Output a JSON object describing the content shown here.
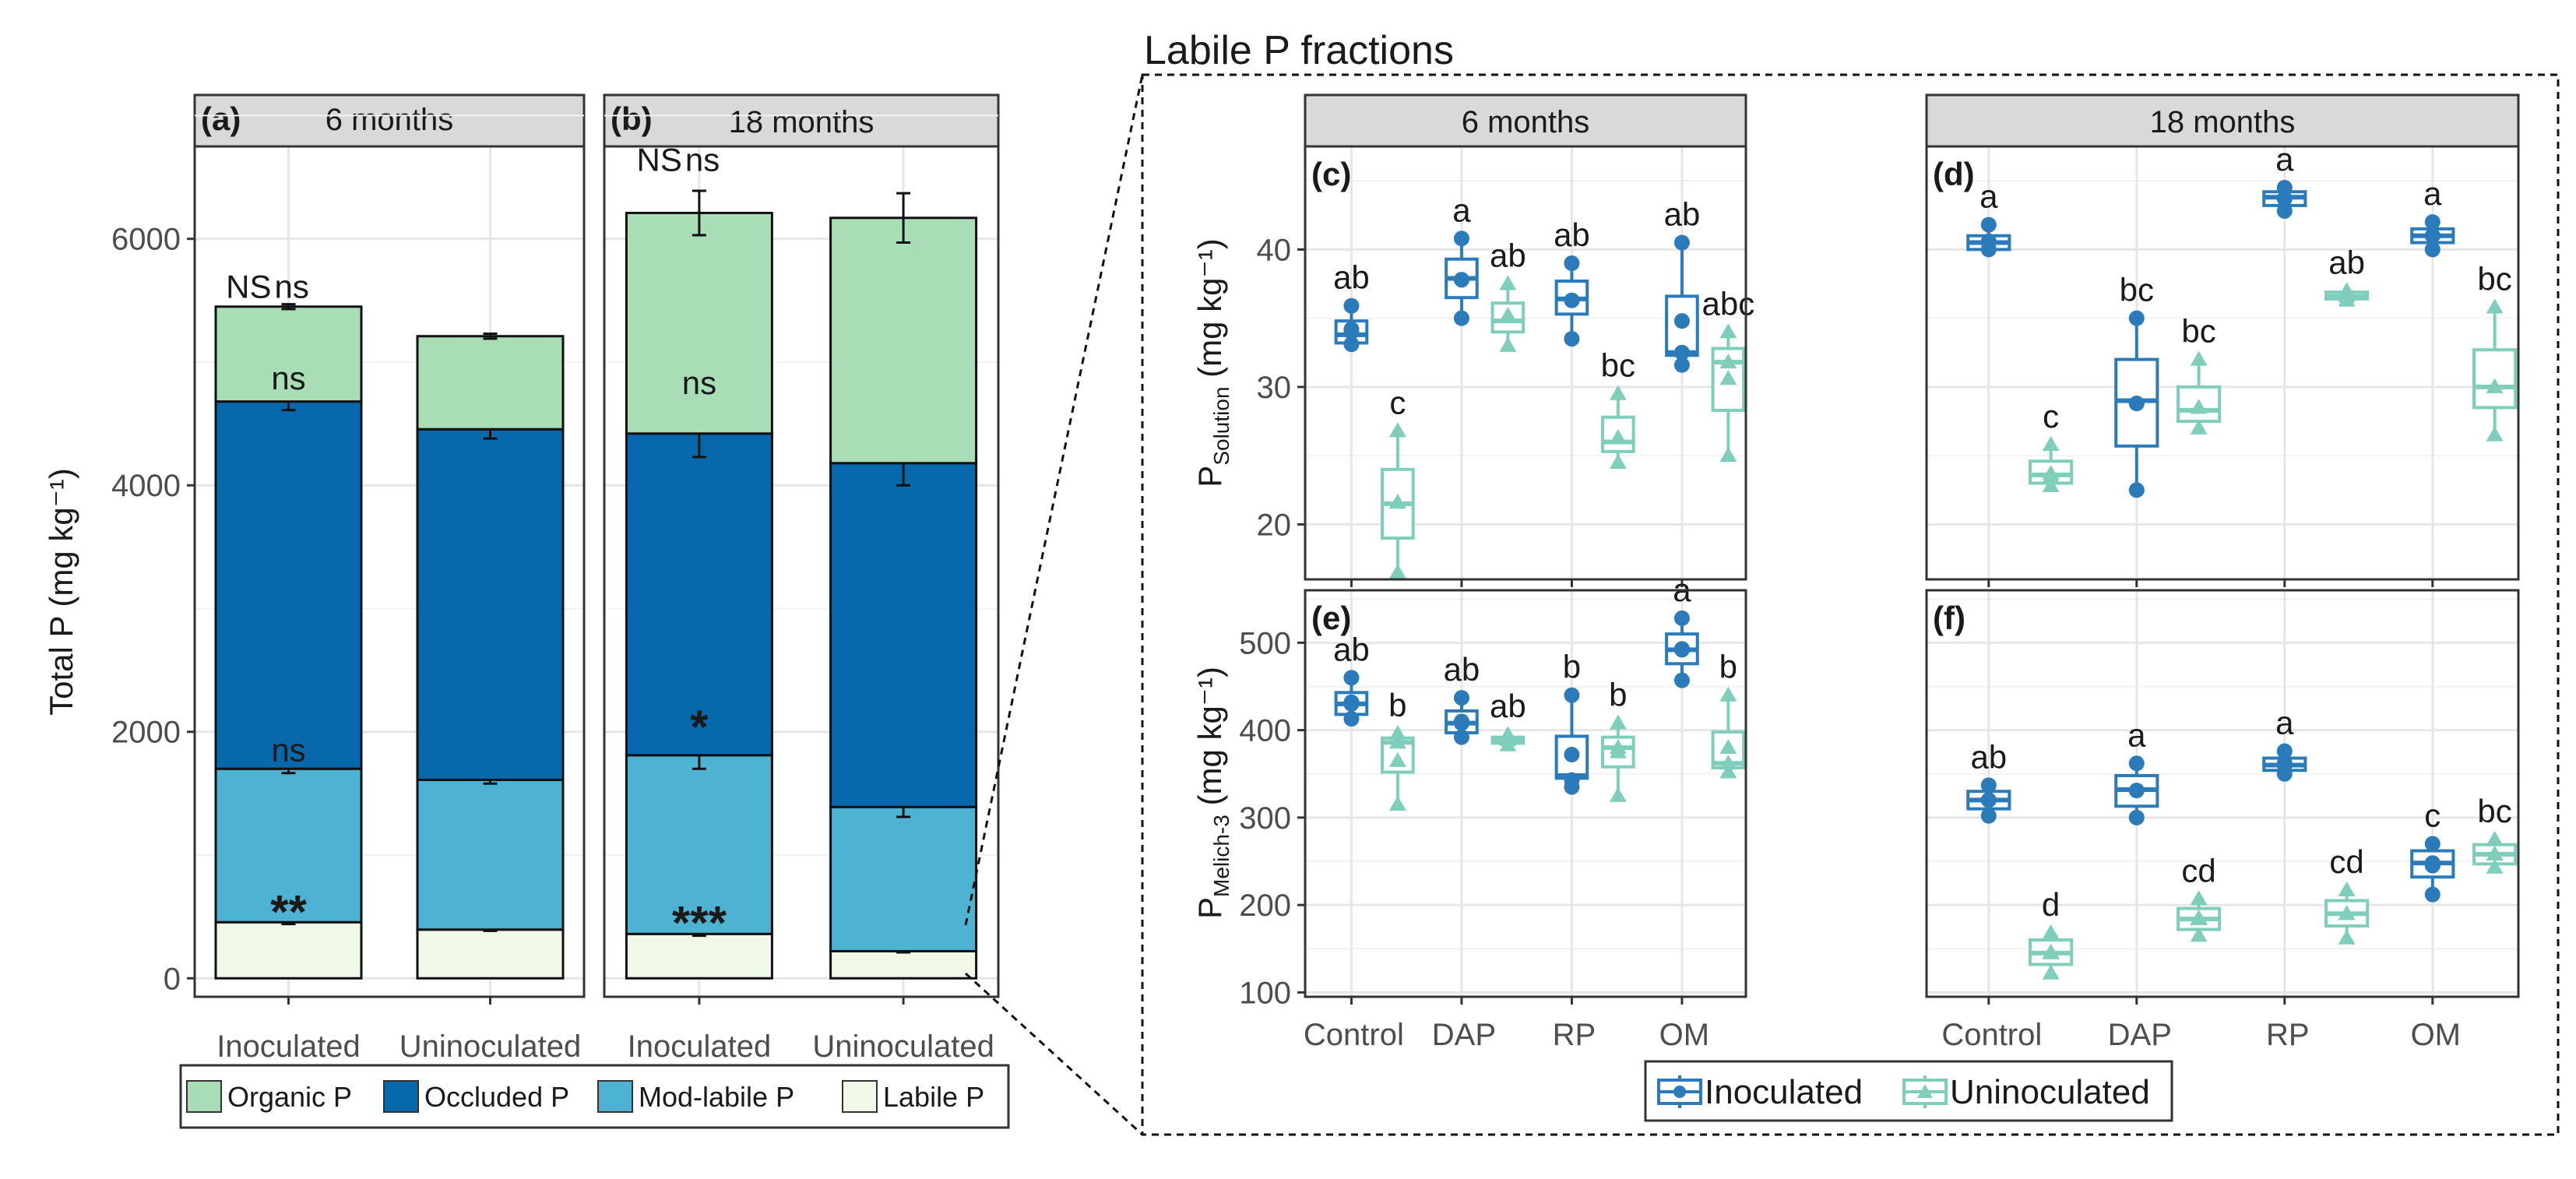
{
  "chart_data": [
    {
      "id": "a",
      "type": "bar",
      "stacked": true,
      "panel_label": "(a)",
      "strip": "6 months",
      "ylabel": "Total P (mg kg⁻¹)",
      "ylim": [
        -150,
        6750
      ],
      "yticks": [
        0,
        2000,
        4000,
        6000
      ],
      "categories": [
        "Inoculated",
        "Uninoculated"
      ],
      "series": [
        {
          "name": "Labile P",
          "values": [
            455,
            395
          ],
          "errors": [
            15,
            10
          ]
        },
        {
          "name": "Mod-labile P",
          "values": [
            1245,
            1215
          ],
          "errors": [
            35,
            30
          ]
        },
        {
          "name": "Occluded P",
          "values": [
            2980,
            2845
          ],
          "errors": [
            70,
            75
          ]
        },
        {
          "name": "Organic P",
          "values": [
            770,
            755
          ],
          "errors": [
            20,
            20
          ]
        }
      ],
      "sig_labels": [
        {
          "text": "NS",
          "value": 5520,
          "group": 0,
          "side": "left"
        },
        {
          "text": "ns",
          "value": 5520,
          "group": 0,
          "side": "right"
        },
        {
          "text": "ns",
          "value": 4780,
          "group": 0,
          "side": "center"
        },
        {
          "text": "ns",
          "value": 1760,
          "group": 0,
          "side": "center"
        },
        {
          "text": "**",
          "value": 460,
          "group": 0,
          "side": "star"
        }
      ]
    },
    {
      "id": "b",
      "type": "bar",
      "stacked": true,
      "panel_label": "(b)",
      "strip": "18 months",
      "ylim": [
        -150,
        6750
      ],
      "categories": [
        "Inoculated",
        "Uninoculated"
      ],
      "series": [
        {
          "name": "Labile P",
          "values": [
            360,
            220
          ],
          "errors": [
            15,
            10
          ]
        },
        {
          "name": "Mod-labile P",
          "values": [
            1450,
            1170
          ],
          "errors": [
            110,
            80
          ]
        },
        {
          "name": "Occluded P",
          "values": [
            2610,
            2790
          ],
          "errors": [
            190,
            180
          ]
        },
        {
          "name": "Organic P",
          "values": [
            1790,
            1990
          ],
          "errors": [
            180,
            200
          ]
        }
      ],
      "sig_labels": [
        {
          "text": "NS",
          "value": 6550,
          "group": 0,
          "side": "left"
        },
        {
          "text": "ns",
          "value": 6550,
          "group": 0,
          "side": "right"
        },
        {
          "text": "ns",
          "value": 4740,
          "group": 0,
          "side": "center"
        },
        {
          "text": "*",
          "value": 1960,
          "group": 0,
          "side": "star"
        },
        {
          "text": "***",
          "value": 370,
          "group": 0,
          "side": "star"
        }
      ]
    },
    {
      "id": "c",
      "type": "box",
      "panel_label": "(c)",
      "strip": "6 months",
      "ylabel": "P",
      "ylabel_sub": "Solution",
      "ylabel_units": " (mg kg⁻¹)",
      "ylim": [
        16,
        47.5
      ],
      "yticks": [
        20,
        30,
        40
      ],
      "categories": [
        "Control",
        "DAP",
        "RP",
        "OM"
      ],
      "series": [
        {
          "name": "Inoculated",
          "boxes": [
            {
              "q1": 33.2,
              "med": 33.8,
              "q3": 34.8,
              "min": 33.0,
              "max": 35.9,
              "mean": 34.2,
              "pts": [
                33.1,
                34.0,
                35.9
              ],
              "label": "ab"
            },
            {
              "q1": 36.5,
              "med": 37.9,
              "q3": 39.3,
              "min": 35.0,
              "max": 40.8,
              "mean": 37.8,
              "pts": [
                35.0,
                37.8,
                40.8
              ],
              "label": "a"
            },
            {
              "q1": 35.3,
              "med": 36.4,
              "q3": 37.7,
              "min": 33.5,
              "max": 39.0,
              "mean": 36.3,
              "pts": [
                33.5,
                36.3,
                39.0
              ],
              "label": "ab"
            },
            {
              "q1": 32.3,
              "med": 32.5,
              "q3": 36.6,
              "min": 31.6,
              "max": 40.5,
              "mean": 34.8,
              "pts": [
                31.6,
                32.5,
                40.5
              ],
              "label": "ab"
            }
          ]
        },
        {
          "name": "Uninoculated",
          "boxes": [
            {
              "q1": 19.0,
              "med": 21.5,
              "q3": 24.0,
              "min": 16.5,
              "max": 26.8,
              "mean": 21.6,
              "pts": [
                16.5,
                21.6,
                26.8
              ],
              "label": "c"
            },
            {
              "q1": 34.0,
              "med": 34.8,
              "q3": 36.1,
              "min": 33.0,
              "max": 37.5,
              "mean": 35.2,
              "pts": [
                33.0,
                35.2,
                37.5
              ],
              "label": "ab"
            },
            {
              "q1": 25.3,
              "med": 26.0,
              "q3": 27.8,
              "min": 24.5,
              "max": 29.5,
              "mean": 26.3,
              "pts": [
                24.5,
                26.3,
                29.5
              ],
              "label": "bc"
            },
            {
              "q1": 28.3,
              "med": 31.8,
              "q3": 32.8,
              "min": 25.0,
              "max": 34.0,
              "mean": 30.6,
              "pts": [
                25.0,
                31.8,
                34.0
              ],
              "label": "abc"
            }
          ]
        }
      ]
    },
    {
      "id": "d",
      "type": "box",
      "panel_label": "(d)",
      "strip": "18 months",
      "ylim": [
        16,
        47.5
      ],
      "categories": [
        "Control",
        "DAP",
        "RP",
        "OM"
      ],
      "series": [
        {
          "name": "Inoculated",
          "boxes": [
            {
              "q1": 40.0,
              "med": 40.5,
              "q3": 41.0,
              "min": 40.0,
              "max": 41.8,
              "mean": 40.6,
              "pts": [
                40.0,
                40.5,
                41.8
              ],
              "label": "a"
            },
            {
              "q1": 25.7,
              "med": 29.0,
              "q3": 32.0,
              "min": 22.5,
              "max": 35.0,
              "mean": 28.8,
              "pts": [
                22.5,
                28.8,
                35.0
              ],
              "label": "bc"
            },
            {
              "q1": 43.2,
              "med": 43.8,
              "q3": 44.2,
              "min": 42.8,
              "max": 44.5,
              "mean": 43.7,
              "pts": [
                42.8,
                43.7,
                44.5
              ],
              "label": "a"
            },
            {
              "q1": 40.5,
              "med": 41.0,
              "q3": 41.5,
              "min": 40.0,
              "max": 42.0,
              "mean": 41.0,
              "pts": [
                40.0,
                41.0,
                42.0
              ],
              "label": "a"
            }
          ]
        },
        {
          "name": "Uninoculated",
          "boxes": [
            {
              "q1": 23.0,
              "med": 23.6,
              "q3": 24.6,
              "min": 22.8,
              "max": 25.8,
              "mean": 23.7,
              "pts": [
                22.8,
                23.5,
                25.8
              ],
              "label": "c"
            },
            {
              "q1": 27.5,
              "med": 28.3,
              "q3": 30.0,
              "min": 27.0,
              "max": 32.0,
              "mean": 28.5,
              "pts": [
                27.0,
                28.5,
                32.0
              ],
              "label": "bc"
            },
            {
              "q1": 36.4,
              "med": 36.6,
              "q3": 36.9,
              "min": 36.3,
              "max": 37.0,
              "mean": 36.6,
              "pts": [
                36.3,
                36.6,
                37.0
              ],
              "label": "ab"
            },
            {
              "q1": 28.5,
              "med": 30.0,
              "q3": 32.7,
              "min": 26.5,
              "max": 35.8,
              "mean": 30.0,
              "pts": [
                26.5,
                30.0,
                35.8
              ],
              "label": "bc"
            }
          ]
        }
      ]
    },
    {
      "id": "e",
      "type": "box",
      "panel_label": "(e)",
      "strip": "",
      "ylabel": "P",
      "ylabel_sub": "Melich-3",
      "ylabel_units": " (mg kg⁻¹)",
      "ylim": [
        95,
        560
      ],
      "yticks": [
        100,
        200,
        300,
        400,
        500
      ],
      "categories": [
        "Control",
        "DAP",
        "RP",
        "OM"
      ],
      "series": [
        {
          "name": "Inoculated",
          "boxes": [
            {
              "q1": 418,
              "med": 430,
              "q3": 443,
              "min": 413,
              "max": 460,
              "mean": 432,
              "pts": [
                413,
                430,
                460
              ],
              "label": "ab"
            },
            {
              "q1": 397,
              "med": 408,
              "q3": 422,
              "min": 392,
              "max": 437,
              "mean": 410,
              "pts": [
                392,
                408,
                437
              ],
              "label": "ab"
            },
            {
              "q1": 345,
              "med": 348,
              "q3": 393,
              "min": 335,
              "max": 440,
              "mean": 372,
              "pts": [
                335,
                343,
                440
              ],
              "label": "b"
            },
            {
              "q1": 476,
              "med": 492,
              "q3": 510,
              "min": 457,
              "max": 528,
              "mean": 493,
              "pts": [
                457,
                492,
                528
              ],
              "label": "a"
            }
          ]
        },
        {
          "name": "Uninoculated",
          "boxes": [
            {
              "q1": 352,
              "med": 386,
              "q3": 391,
              "min": 315,
              "max": 396,
              "mean": 365,
              "pts": [
                315,
                386,
                396
              ],
              "label": "b"
            },
            {
              "q1": 385,
              "med": 389,
              "q3": 392,
              "min": 383,
              "max": 395,
              "mean": 389,
              "pts": [
                383,
                389,
                395
              ],
              "label": "ab"
            },
            {
              "q1": 358,
              "med": 380,
              "q3": 392,
              "min": 325,
              "max": 408,
              "mean": 375,
              "pts": [
                325,
                380,
                408
              ],
              "label": "b"
            },
            {
              "q1": 357,
              "med": 362,
              "q3": 398,
              "min": 352,
              "max": 440,
              "mean": 380,
              "pts": [
                352,
                362,
                440
              ],
              "label": "b"
            }
          ]
        }
      ]
    },
    {
      "id": "f",
      "type": "box",
      "panel_label": "(f)",
      "strip": "",
      "ylim": [
        95,
        560
      ],
      "categories": [
        "Control",
        "DAP",
        "RP",
        "OM"
      ],
      "series": [
        {
          "name": "Inoculated",
          "boxes": [
            {
              "q1": 310,
              "med": 320,
              "q3": 330,
              "min": 302,
              "max": 337,
              "mean": 320,
              "pts": [
                302,
                320,
                337
              ],
              "label": "ab"
            },
            {
              "q1": 313,
              "med": 332,
              "q3": 348,
              "min": 300,
              "max": 362,
              "mean": 331,
              "pts": [
                300,
                331,
                362
              ],
              "label": "a"
            },
            {
              "q1": 354,
              "med": 360,
              "q3": 368,
              "min": 350,
              "max": 376,
              "mean": 362,
              "pts": [
                350,
                360,
                376
              ],
              "label": "a"
            },
            {
              "q1": 232,
              "med": 248,
              "q3": 262,
              "min": 212,
              "max": 270,
              "mean": 245,
              "pts": [
                212,
                248,
                270
              ],
              "label": "c"
            }
          ]
        },
        {
          "name": "Uninoculated",
          "boxes": [
            {
              "q1": 132,
              "med": 145,
              "q3": 160,
              "min": 122,
              "max": 168,
              "mean": 146,
              "pts": [
                122,
                145,
                168
              ],
              "label": "d"
            },
            {
              "q1": 172,
              "med": 184,
              "q3": 196,
              "min": 165,
              "max": 207,
              "mean": 185,
              "pts": [
                165,
                184,
                207
              ],
              "label": "cd"
            },
            {
              "q1": 176,
              "med": 190,
              "q3": 205,
              "min": 162,
              "max": 217,
              "mean": 190,
              "pts": [
                162,
                190,
                217
              ],
              "label": "cd"
            },
            {
              "q1": 247,
              "med": 258,
              "q3": 269,
              "min": 243,
              "max": 275,
              "mean": 258,
              "pts": [
                243,
                258,
                275
              ],
              "label": "bc"
            }
          ]
        }
      ]
    }
  ],
  "labile_title": "Labile P fractions",
  "bar_legend": [
    {
      "name": "Organic P",
      "color": "#a8ddb5"
    },
    {
      "name": "Occluded P",
      "color": "#0868ac"
    },
    {
      "name": "Mod-labile P",
      "color": "#4eb3d3"
    },
    {
      "name": "Labile P",
      "color": "#f0f9e8"
    }
  ],
  "box_legend": [
    {
      "name": "Inoculated",
      "color": "#2b7bba"
    },
    {
      "name": "Uninoculated",
      "color": "#7fcdbb"
    }
  ],
  "colors": {
    "strip_bg": "#d9d9d9",
    "inoculated": "#2b7bba",
    "uninoculated": "#7fcdbb"
  }
}
